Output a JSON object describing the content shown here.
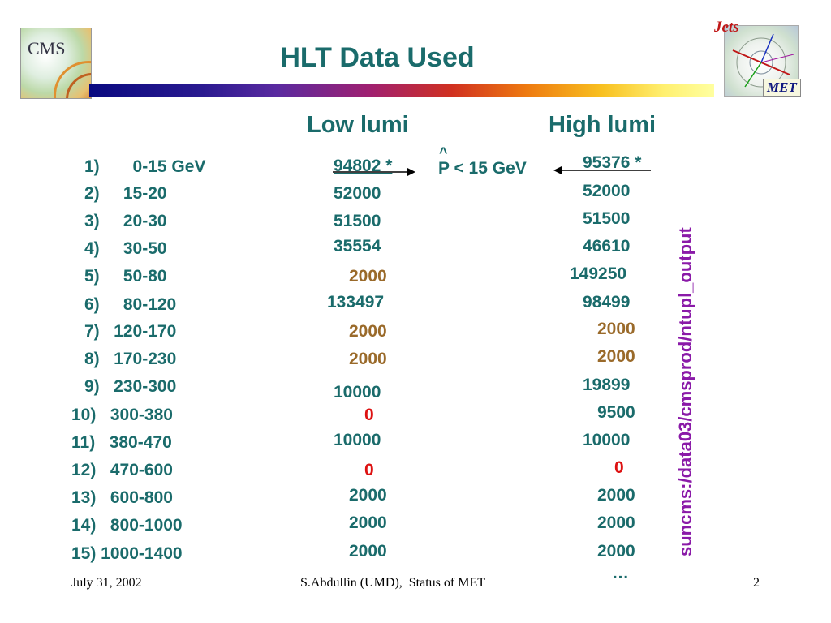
{
  "slide": {
    "title": "HLT Data Used",
    "cms_logo_text": "CMS",
    "jets_logo_text": "Jets",
    "met_logo_text": "MET",
    "col_low": "Low lumi",
    "col_high": "High lumi",
    "pt_hat": "^",
    "pt_label": "P < 15 GeV",
    "vertical_path": "suncms:/data03/cmsprod/ntupl_output",
    "bins": [
      "1)       0-15 GeV",
      "2)     15-20",
      "3)     20-30",
      "4)     30-50",
      "5)     50-80",
      "6)     80-120",
      "7)   120-170",
      "8)   170-230",
      "9)   230-300",
      "10)   300-380",
      "11)   380-470",
      "12)   470-600",
      "13)   600-800",
      "14)   800-1000",
      "15) 1000-1400"
    ],
    "low": [
      "94802 *",
      "52000",
      "51500",
      "35554",
      "2000",
      "133497",
      "2000",
      "2000",
      "10000",
      "0",
      "10000",
      "0",
      "2000",
      "2000",
      "2000"
    ],
    "high": [
      "95376 *",
      "52000",
      "51500",
      "46610",
      "149250",
      "98499",
      "2000",
      "2000",
      "19899",
      "9500",
      "10000",
      "0",
      "2000",
      "2000",
      "2000"
    ],
    "ellipsis": "…",
    "footer": {
      "date": "July 31, 2002",
      "author": "S.Abdullin (UMD),  Status of MET",
      "page": "2"
    }
  }
}
